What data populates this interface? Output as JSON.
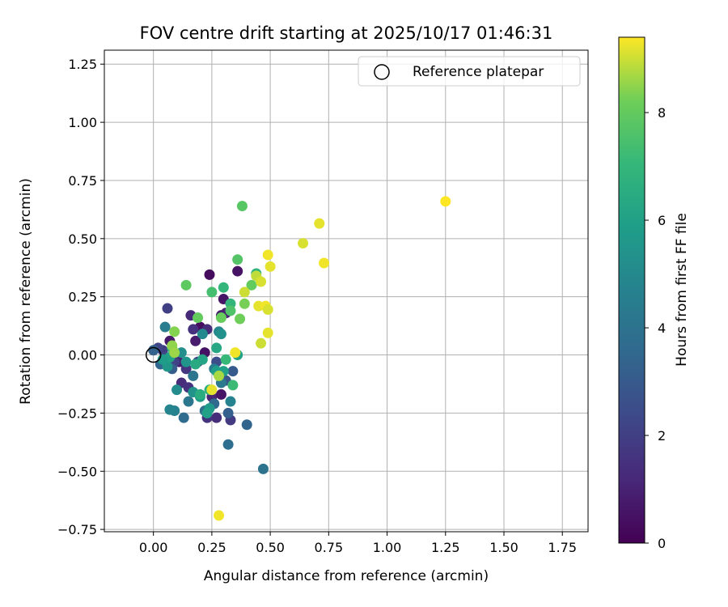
{
  "chart_data": {
    "type": "scatter",
    "title": "FOV centre drift starting at 2025/10/17 01:46:31",
    "xlabel": "Angular distance from reference (arcmin)",
    "ylabel": "Rotation from reference (arcmin)",
    "xlim": [
      -0.21,
      1.86
    ],
    "ylim": [
      -0.76,
      1.31
    ],
    "xticks": [
      0.0,
      0.25,
      0.5,
      0.75,
      1.0,
      1.25,
      1.5,
      1.75
    ],
    "xtick_labels": [
      "0.00",
      "0.25",
      "0.50",
      "0.75",
      "1.00",
      "1.25",
      "1.50",
      "1.75"
    ],
    "yticks": [
      -0.75,
      -0.5,
      -0.25,
      0.0,
      0.25,
      0.5,
      0.75,
      1.0,
      1.25
    ],
    "ytick_labels": [
      "−0.75",
      "−0.50",
      "−0.25",
      "0.00",
      "0.25",
      "0.50",
      "0.75",
      "1.00",
      "1.25"
    ],
    "grid": true,
    "legend": {
      "label": "Reference platepar",
      "position": "top-right"
    },
    "reference_point": {
      "x": 0.0,
      "y": 0.0
    },
    "colorbar": {
      "label": "Hours from first FF file",
      "cmap": "viridis",
      "range": [
        0,
        9.4
      ],
      "ticks": [
        0,
        2,
        4,
        6,
        8
      ],
      "tick_labels": [
        "0",
        "2",
        "4",
        "6",
        "8"
      ]
    },
    "points": [
      {
        "x": 0.24,
        "y": 0.345,
        "c": 0.3
      },
      {
        "x": 0.36,
        "y": 0.36,
        "c": 0.5
      },
      {
        "x": 0.3,
        "y": 0.24,
        "c": 0.6
      },
      {
        "x": 0.29,
        "y": 0.17,
        "c": 0.8
      },
      {
        "x": 0.31,
        "y": 0.18,
        "c": 1.0
      },
      {
        "x": 0.22,
        "y": 0.01,
        "c": 0.5
      },
      {
        "x": 0.18,
        "y": 0.06,
        "c": 0.8
      },
      {
        "x": 0.2,
        "y": 0.12,
        "c": 0.4
      },
      {
        "x": 0.16,
        "y": 0.17,
        "c": 1.2
      },
      {
        "x": 0.07,
        "y": 0.06,
        "c": 0.7
      },
      {
        "x": 0.11,
        "y": -0.03,
        "c": 0.9
      },
      {
        "x": 0.12,
        "y": -0.12,
        "c": 1.3
      },
      {
        "x": 0.15,
        "y": -0.14,
        "c": 1.5
      },
      {
        "x": 0.27,
        "y": -0.27,
        "c": 1.4
      },
      {
        "x": 0.25,
        "y": -0.18,
        "c": 1.1
      },
      {
        "x": 0.29,
        "y": -0.17,
        "c": 0.6
      },
      {
        "x": 0.33,
        "y": -0.28,
        "c": 1.8
      },
      {
        "x": 0.23,
        "y": -0.27,
        "c": 1.6
      },
      {
        "x": 0.06,
        "y": 0.2,
        "c": 2.0
      },
      {
        "x": 0.04,
        "y": 0.02,
        "c": 1.9
      },
      {
        "x": 0.02,
        "y": 0.03,
        "c": 2.2
      },
      {
        "x": 0.05,
        "y": -0.01,
        "c": 2.4
      },
      {
        "x": 0.09,
        "y": -0.03,
        "c": 2.1
      },
      {
        "x": 0.14,
        "y": -0.06,
        "c": 1.7
      },
      {
        "x": 0.19,
        "y": -0.03,
        "c": 2.3
      },
      {
        "x": 0.17,
        "y": 0.11,
        "c": 1.5
      },
      {
        "x": 0.23,
        "y": 0.11,
        "c": 1.3
      },
      {
        "x": 0.27,
        "y": -0.03,
        "c": 2.5
      },
      {
        "x": 0.29,
        "y": -0.1,
        "c": 2.6
      },
      {
        "x": 0.31,
        "y": -0.11,
        "c": 2.8
      },
      {
        "x": 0.34,
        "y": -0.07,
        "c": 3.0
      },
      {
        "x": 0.32,
        "y": -0.25,
        "c": 3.2
      },
      {
        "x": 0.4,
        "y": -0.3,
        "c": 3.4
      },
      {
        "x": 0.32,
        "y": -0.385,
        "c": 3.8
      },
      {
        "x": 0.47,
        "y": -0.49,
        "c": 4.0
      },
      {
        "x": 0.26,
        "y": -0.21,
        "c": 3.6
      },
      {
        "x": 0.22,
        "y": -0.24,
        "c": 3.9
      },
      {
        "x": 0.13,
        "y": -0.27,
        "c": 3.7
      },
      {
        "x": 0.15,
        "y": -0.2,
        "c": 4.2
      },
      {
        "x": 0.09,
        "y": -0.24,
        "c": 4.6
      },
      {
        "x": 0.07,
        "y": -0.235,
        "c": 4.8
      },
      {
        "x": 0.05,
        "y": 0.12,
        "c": 4.4
      },
      {
        "x": 0.0,
        "y": 0.02,
        "c": 3.3
      },
      {
        "x": 0.03,
        "y": -0.04,
        "c": 3.5
      },
      {
        "x": 0.08,
        "y": -0.06,
        "c": 3.1
      },
      {
        "x": 0.17,
        "y": -0.09,
        "c": 4.1
      },
      {
        "x": 0.26,
        "y": -0.06,
        "c": 4.5
      },
      {
        "x": 0.29,
        "y": -0.12,
        "c": 4.3
      },
      {
        "x": 0.33,
        "y": -0.2,
        "c": 4.7
      },
      {
        "x": 0.21,
        "y": 0.09,
        "c": 5.0
      },
      {
        "x": 0.28,
        "y": 0.1,
        "c": 4.9
      },
      {
        "x": 0.29,
        "y": 0.09,
        "c": 5.3
      },
      {
        "x": 0.12,
        "y": 0.01,
        "c": 5.2
      },
      {
        "x": 0.14,
        "y": -0.03,
        "c": 5.5
      },
      {
        "x": 0.06,
        "y": -0.05,
        "c": 5.6
      },
      {
        "x": 0.1,
        "y": -0.15,
        "c": 5.1
      },
      {
        "x": 0.17,
        "y": -0.16,
        "c": 5.4
      },
      {
        "x": 0.2,
        "y": -0.18,
        "c": 5.8
      },
      {
        "x": 0.24,
        "y": -0.23,
        "c": 5.7
      },
      {
        "x": 0.27,
        "y": -0.07,
        "c": 5.9
      },
      {
        "x": 0.3,
        "y": -0.07,
        "c": 6.0
      },
      {
        "x": 0.36,
        "y": 0.0,
        "c": 6.1
      },
      {
        "x": 0.27,
        "y": 0.03,
        "c": 6.3
      },
      {
        "x": 0.21,
        "y": -0.02,
        "c": 6.2
      },
      {
        "x": 0.18,
        "y": -0.04,
        "c": 6.4
      },
      {
        "x": 0.23,
        "y": -0.25,
        "c": 6.0
      },
      {
        "x": 0.2,
        "y": -0.17,
        "c": 6.5
      },
      {
        "x": 0.08,
        "y": 0.03,
        "c": 6.6
      },
      {
        "x": 0.07,
        "y": -0.01,
        "c": 6.1
      },
      {
        "x": 0.04,
        "y": -0.02,
        "c": 5.8
      },
      {
        "x": 0.24,
        "y": -0.15,
        "c": 6.7
      },
      {
        "x": 0.3,
        "y": 0.29,
        "c": 7.0
      },
      {
        "x": 0.33,
        "y": 0.22,
        "c": 6.9
      },
      {
        "x": 0.44,
        "y": 0.35,
        "c": 6.8
      },
      {
        "x": 0.31,
        "y": -0.02,
        "c": 7.1
      },
      {
        "x": 0.25,
        "y": 0.27,
        "c": 7.4
      },
      {
        "x": 0.34,
        "y": -0.13,
        "c": 7.2
      },
      {
        "x": 0.33,
        "y": 0.19,
        "c": 7.6
      },
      {
        "x": 0.38,
        "y": 0.64,
        "c": 7.8
      },
      {
        "x": 0.36,
        "y": 0.41,
        "c": 7.7
      },
      {
        "x": 0.14,
        "y": 0.3,
        "c": 7.9
      },
      {
        "x": 0.19,
        "y": 0.16,
        "c": 8.0
      },
      {
        "x": 0.29,
        "y": 0.16,
        "c": 8.1
      },
      {
        "x": 0.37,
        "y": 0.155,
        "c": 8.2
      },
      {
        "x": 0.39,
        "y": 0.22,
        "c": 8.3
      },
      {
        "x": 0.42,
        "y": 0.3,
        "c": 8.0
      },
      {
        "x": 0.09,
        "y": 0.1,
        "c": 8.4
      },
      {
        "x": 0.08,
        "y": 0.04,
        "c": 8.5
      },
      {
        "x": 0.09,
        "y": 0.01,
        "c": 8.6
      },
      {
        "x": 0.28,
        "y": -0.09,
        "c": 8.7
      },
      {
        "x": 0.25,
        "y": -0.15,
        "c": 9.2
      },
      {
        "x": 0.35,
        "y": 0.01,
        "c": 9.3
      },
      {
        "x": 0.39,
        "y": 0.27,
        "c": 9.0
      },
      {
        "x": 0.44,
        "y": 0.34,
        "c": 8.9
      },
      {
        "x": 0.46,
        "y": 0.315,
        "c": 9.1
      },
      {
        "x": 0.45,
        "y": 0.21,
        "c": 9.2
      },
      {
        "x": 0.48,
        "y": 0.21,
        "c": 9.3
      },
      {
        "x": 0.49,
        "y": 0.195,
        "c": 9.1
      },
      {
        "x": 0.49,
        "y": 0.095,
        "c": 9.2
      },
      {
        "x": 0.46,
        "y": 0.05,
        "c": 9.0
      },
      {
        "x": 0.49,
        "y": 0.43,
        "c": 9.3
      },
      {
        "x": 0.5,
        "y": 0.38,
        "c": 9.2
      },
      {
        "x": 0.64,
        "y": 0.48,
        "c": 9.1
      },
      {
        "x": 0.71,
        "y": 0.565,
        "c": 9.2
      },
      {
        "x": 0.73,
        "y": 0.395,
        "c": 9.3
      },
      {
        "x": 1.25,
        "y": 0.66,
        "c": 9.4
      },
      {
        "x": 0.28,
        "y": -0.69,
        "c": 9.3
      }
    ]
  }
}
